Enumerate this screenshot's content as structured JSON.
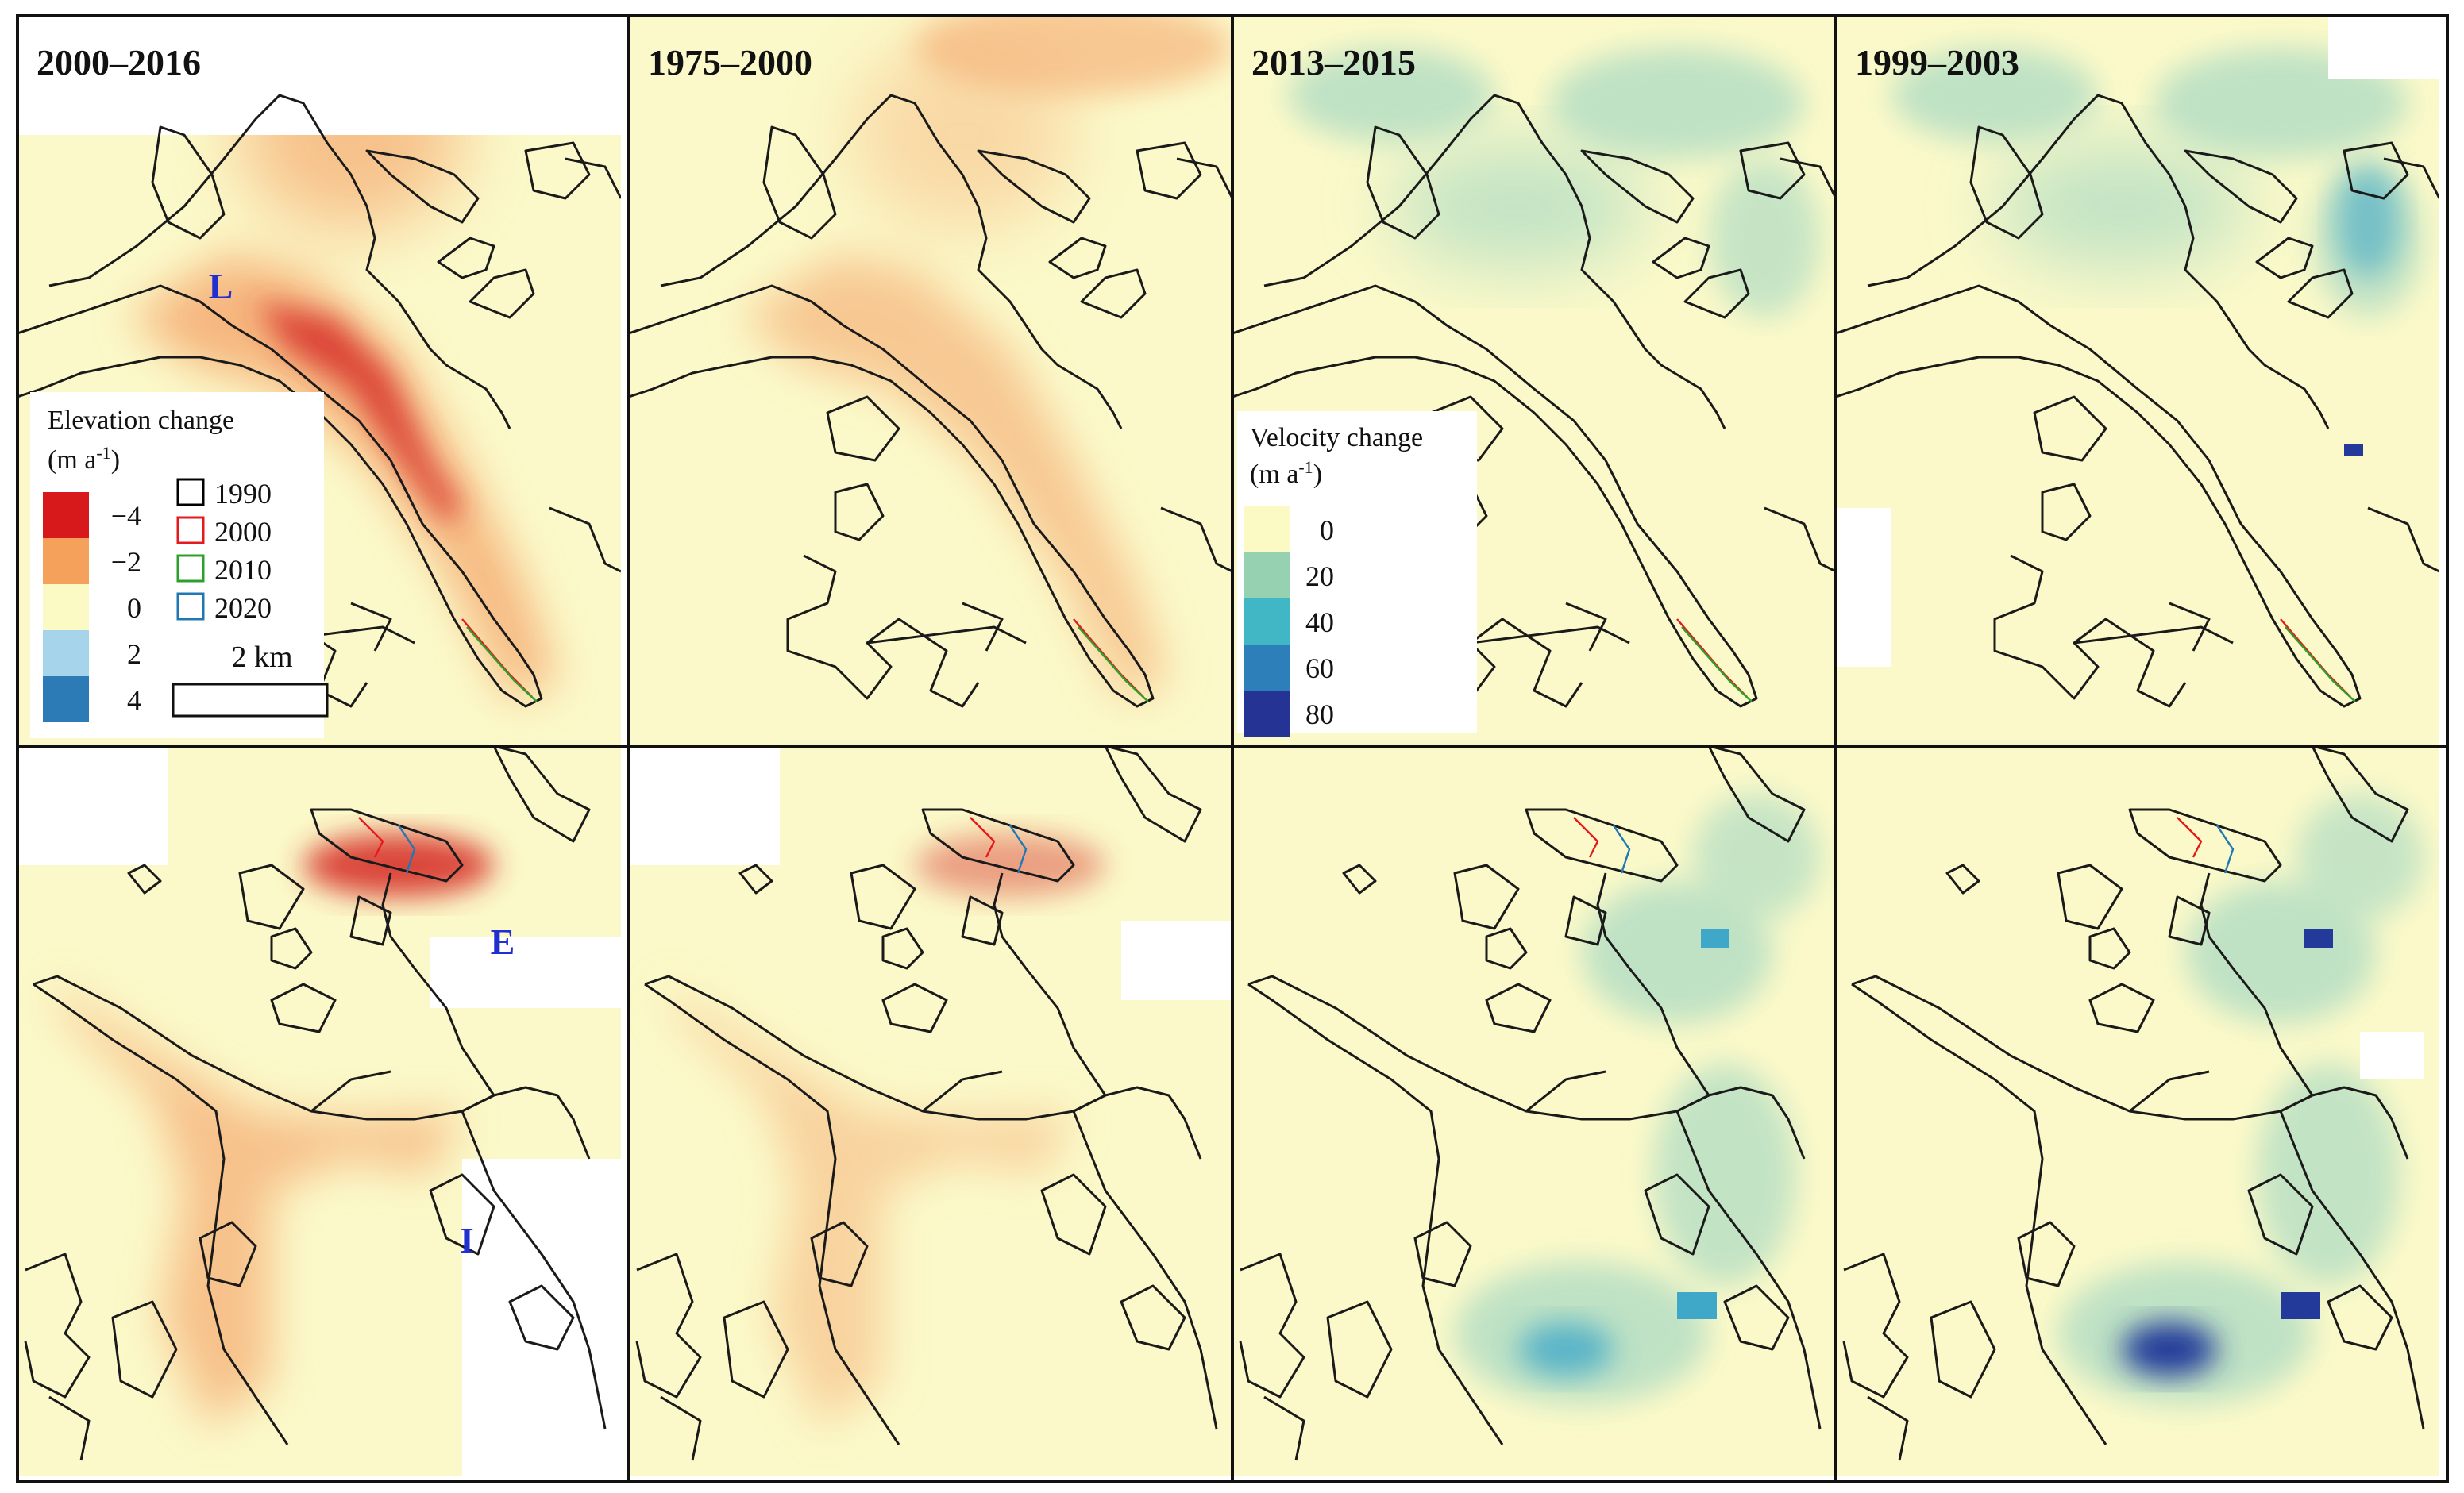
{
  "panels": [
    {
      "id": "top-elev-2000-2016",
      "title": "2000–2016",
      "kind": "elevation"
    },
    {
      "id": "top-elev-1975-2000",
      "title": "1975–2000",
      "kind": "elevation"
    },
    {
      "id": "top-vel-2013-2015",
      "title": "2013–2015",
      "kind": "velocity"
    },
    {
      "id": "top-vel-1999-2003",
      "title": "1999–2003",
      "kind": "velocity"
    },
    {
      "id": "bottom-elev-2000-2016",
      "title": "",
      "kind": "elevation"
    },
    {
      "id": "bottom-elev-1975-2000",
      "title": "",
      "kind": "elevation"
    },
    {
      "id": "bottom-vel-2013-2015",
      "title": "",
      "kind": "velocity"
    },
    {
      "id": "bottom-vel-1999-2003",
      "title": "",
      "kind": "velocity"
    }
  ],
  "glacier_labels": {
    "L": "L",
    "E": "E",
    "I": "I"
  },
  "elevation_legend": {
    "title_line1": "Elevation change",
    "title_line2_base": "(m a",
    "title_line2_sup": "-1",
    "title_line2_end": ")",
    "items": [
      {
        "label": "−4",
        "color": "#d7191c"
      },
      {
        "label": "−2",
        "color": "#f5a15c"
      },
      {
        "label": "0",
        "color": "#fbf9c4"
      },
      {
        "label": "2",
        "color": "#a6d4ea"
      },
      {
        "label": "4",
        "color": "#2c7bb6"
      }
    ]
  },
  "outline_legend": {
    "items": [
      {
        "label": "1990",
        "color": "#000000"
      },
      {
        "label": "2000",
        "color": "#e41a1c"
      },
      {
        "label": "2010",
        "color": "#2ca02c"
      },
      {
        "label": "2020",
        "color": "#1f78b4"
      }
    ]
  },
  "scale_bar": {
    "label": "2 km"
  },
  "velocity_legend": {
    "title_line1": "Velocity change",
    "title_line2_base": "(m a",
    "title_line2_sup": "-1",
    "title_line2_end": ")",
    "items": [
      {
        "label": "0",
        "color": "#fbf9c4"
      },
      {
        "label": "20",
        "color": "#96d2b2"
      },
      {
        "label": "40",
        "color": "#41b6c4"
      },
      {
        "label": "60",
        "color": "#2c7fb8"
      },
      {
        "label": "80",
        "color": "#253494"
      }
    ]
  },
  "colors": {
    "background_pale": "#fbf9c9",
    "elevation_loss_mid": "#f6b47c",
    "elevation_loss_strong": "#d7302b",
    "velocity_light": "#b9e0c4",
    "velocity_mid": "#3fa8c9",
    "velocity_strong": "#233a9a",
    "outline": "#1a1a1a",
    "panel_border": "#111111"
  }
}
